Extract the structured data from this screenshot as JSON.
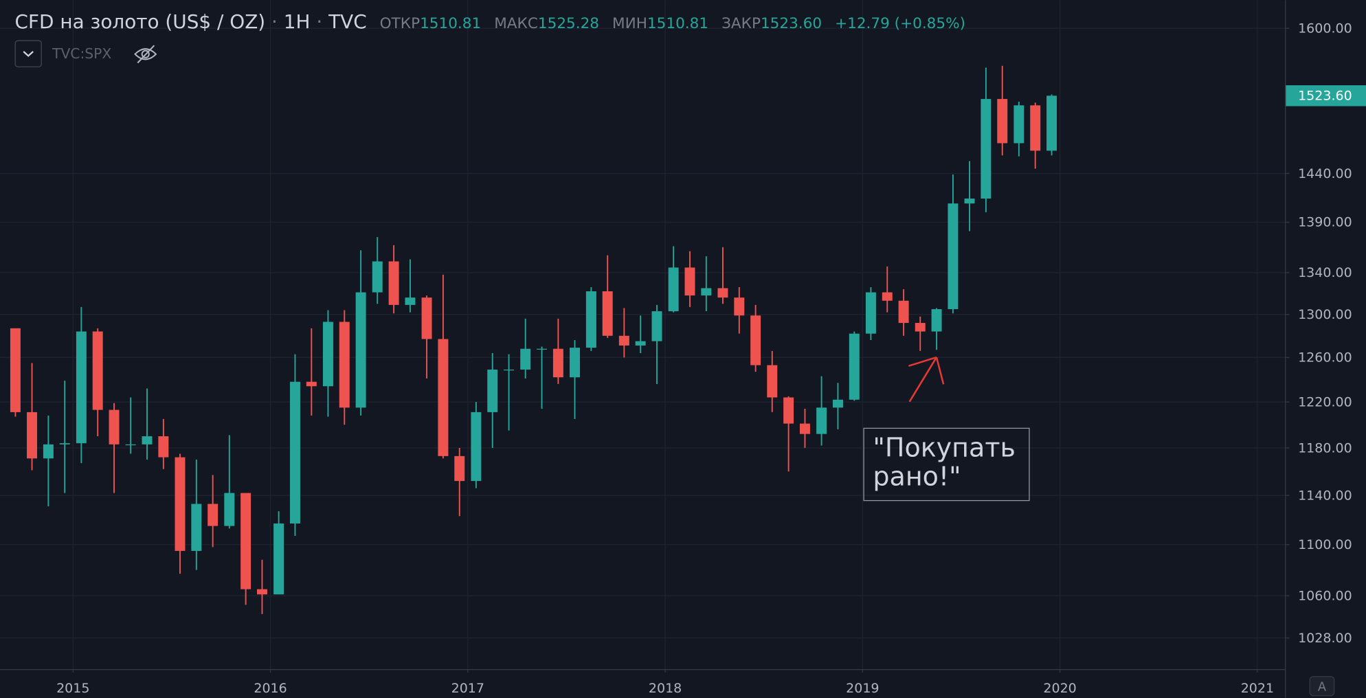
{
  "chart_data": {
    "type": "candlestick",
    "title": "CFD на золото (US$ / OZ)",
    "interval": "1H",
    "source": "TVC",
    "ohlc_legend": [
      {
        "label": "ОТКР",
        "value": "1510.81"
      },
      {
        "label": "МАКС",
        "value": "1525.28"
      },
      {
        "label": "МИН",
        "value": "1510.81"
      },
      {
        "label": "ЗАКР",
        "value": "1523.60"
      }
    ],
    "change": "+12.79 (+0.85%)",
    "compare_symbol": "TVC:SPX",
    "scale_button": "A",
    "annotation": [
      "\"Покупать",
      "рано!\""
    ],
    "up_color": "#26a69a",
    "down_color": "#ef5350",
    "log_scale": true,
    "grid": true,
    "last_price": {
      "value": 1523.6,
      "label": "1523.60"
    },
    "xlim": [
      2014.63,
      2021.14
    ],
    "xticks": [
      2015,
      2016,
      2017,
      2018,
      2019,
      2020,
      2021
    ],
    "ylim": [
      1005,
      1633
    ],
    "yticks": [
      {
        "value": 1600,
        "label": "1600.00"
      },
      {
        "value": 1440,
        "label": "1440.00"
      },
      {
        "value": 1390,
        "label": "1390.00"
      },
      {
        "value": 1340,
        "label": "1340.00"
      },
      {
        "value": 1300,
        "label": "1300.00"
      },
      {
        "value": 1260,
        "label": "1260.00"
      },
      {
        "value": 1220,
        "label": "1220.00"
      },
      {
        "value": 1180,
        "label": "1180.00"
      },
      {
        "value": 1140,
        "label": "1140.00"
      },
      {
        "value": 1100,
        "label": "1100.00"
      },
      {
        "value": 1060,
        "label": "1060.00"
      },
      {
        "value": 1028,
        "label": "1028.00"
      }
    ],
    "x": [
      2014.708,
      2014.792,
      2014.875,
      2014.958,
      2015.042,
      2015.125,
      2015.208,
      2015.292,
      2015.375,
      2015.458,
      2015.542,
      2015.625,
      2015.708,
      2015.792,
      2015.875,
      2015.958,
      2016.042,
      2016.125,
      2016.208,
      2016.292,
      2016.375,
      2016.458,
      2016.542,
      2016.625,
      2016.708,
      2016.792,
      2016.875,
      2016.958,
      2017.042,
      2017.125,
      2017.208,
      2017.292,
      2017.375,
      2017.458,
      2017.542,
      2017.625,
      2017.708,
      2017.792,
      2017.875,
      2017.958,
      2018.042,
      2018.125,
      2018.208,
      2018.292,
      2018.375,
      2018.458,
      2018.542,
      2018.625,
      2018.708,
      2018.792,
      2018.875,
      2018.958,
      2019.042,
      2019.125,
      2019.208,
      2019.292,
      2019.375,
      2019.458,
      2019.542,
      2019.625,
      2019.708,
      2019.792,
      2019.875,
      2019.958
    ],
    "open": [
      1287,
      1211,
      1171,
      1183,
      1184,
      1284,
      1213,
      1183,
      1183,
      1190,
      1172,
      1095,
      1133,
      1115,
      1142,
      1065,
      1061,
      1117,
      1238,
      1234,
      1293,
      1215,
      1321,
      1351,
      1309,
      1316,
      1277,
      1173,
      1152,
      1211,
      1249,
      1249,
      1268,
      1268,
      1242,
      1269,
      1322,
      1280,
      1271,
      1275,
      1303,
      1345,
      1318,
      1325,
      1316,
      1299,
      1253,
      1224,
      1201,
      1192,
      1215,
      1222,
      1282,
      1321,
      1313,
      1292,
      1284,
      1305,
      1409,
      1414,
      1520,
      1472,
      1513,
      1464
    ],
    "high": [
      1287,
      1255,
      1208,
      1239,
      1307,
      1287,
      1219,
      1224,
      1232,
      1205,
      1175,
      1170,
      1157,
      1191,
      1142,
      1088,
      1127,
      1263,
      1287,
      1304,
      1304,
      1362,
      1375,
      1367,
      1353,
      1318,
      1338,
      1180,
      1220,
      1264,
      1263,
      1296,
      1270,
      1296,
      1276,
      1326,
      1357,
      1306,
      1299,
      1309,
      1366,
      1361,
      1356,
      1365,
      1326,
      1309,
      1266,
      1225,
      1214,
      1243,
      1237,
      1284,
      1326,
      1346,
      1324,
      1298,
      1306,
      1439,
      1453,
      1555,
      1557,
      1517,
      1516,
      1525
    ],
    "low": [
      1207,
      1161,
      1131,
      1142,
      1167,
      1190,
      1142,
      1175,
      1170,
      1162,
      1077,
      1080,
      1098,
      1113,
      1053,
      1046,
      1061,
      1107,
      1208,
      1207,
      1200,
      1208,
      1310,
      1301,
      1302,
      1241,
      1171,
      1123,
      1146,
      1180,
      1195,
      1241,
      1214,
      1236,
      1205,
      1266,
      1278,
      1260,
      1264,
      1236,
      1302,
      1307,
      1303,
      1310,
      1282,
      1247,
      1211,
      1160,
      1180,
      1182,
      1196,
      1221,
      1276,
      1302,
      1280,
      1266,
      1267,
      1301,
      1381,
      1400,
      1459,
      1458,
      1445,
      1459
    ],
    "close": [
      1211,
      1171,
      1183,
      1184,
      1284,
      1213,
      1183,
      1183,
      1190,
      1172,
      1095,
      1133,
      1115,
      1142,
      1065,
      1061,
      1117,
      1238,
      1234,
      1293,
      1215,
      1321,
      1351,
      1309,
      1316,
      1277,
      1173,
      1152,
      1211,
      1249,
      1249,
      1268,
      1268,
      1242,
      1269,
      1322,
      1280,
      1271,
      1275,
      1303,
      1345,
      1318,
      1325,
      1316,
      1299,
      1253,
      1224,
      1201,
      1192,
      1215,
      1222,
      1282,
      1321,
      1313,
      1292,
      1284,
      1305,
      1409,
      1414,
      1520,
      1472,
      1513,
      1464,
      1523.6
    ]
  }
}
